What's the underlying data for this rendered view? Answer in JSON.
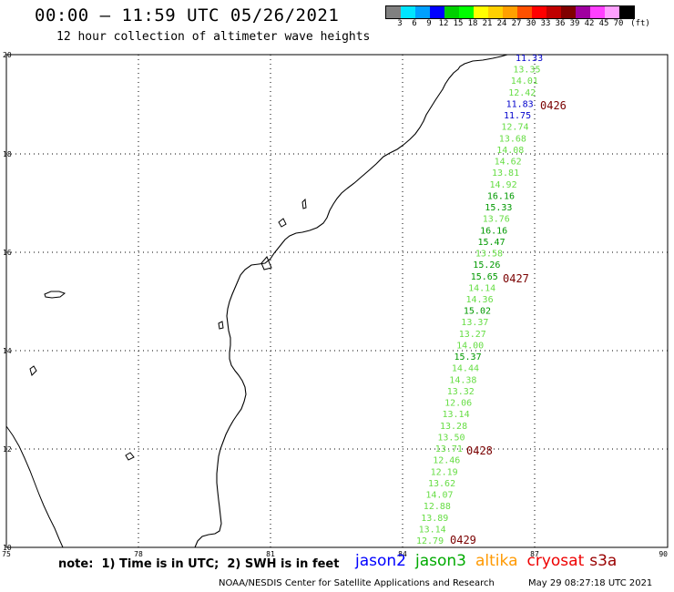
{
  "header": {
    "title": "00:00 – 11:59 UTC 05/26/2021",
    "subtitle": "12 hour collection of altimeter wave heights"
  },
  "legend": {
    "unit": "(ft)",
    "colors": [
      "#808080",
      "#00e5ff",
      "#00a0ff",
      "#0000ff",
      "#00d000",
      "#00ff00",
      "#ffff00",
      "#ffd000",
      "#ffa000",
      "#ff5000",
      "#ff0000",
      "#c00000",
      "#800000",
      "#a000a0",
      "#ff40ff",
      "#ffa0ff",
      "#000000"
    ],
    "ticks": [
      "3",
      "6",
      "9",
      "12",
      "15",
      "18",
      "21",
      "24",
      "27",
      "30",
      "33",
      "36",
      "39",
      "42",
      "45",
      "70"
    ]
  },
  "axes": {
    "x_ticks": [
      "75",
      "78",
      "81",
      "84",
      "87",
      "90"
    ],
    "y_ticks": [
      "20",
      "18",
      "16",
      "14",
      "12",
      "10"
    ]
  },
  "pass_labels": [
    "0426",
    "0427",
    "0428",
    "0429"
  ],
  "wave_heights": [
    {
      "v": "11.33",
      "c": "#0000cc"
    },
    {
      "v": "13.35",
      "c": "#66dd44"
    },
    {
      "v": "14.01",
      "c": "#66dd44"
    },
    {
      "v": "12.42",
      "c": "#66dd44"
    },
    {
      "v": "11.83",
      "c": "#0000cc"
    },
    {
      "v": "11.75",
      "c": "#0000cc"
    },
    {
      "v": "12.74",
      "c": "#66dd44"
    },
    {
      "v": "13.68",
      "c": "#66dd44"
    },
    {
      "v": "14.08",
      "c": "#66dd44"
    },
    {
      "v": "14.62",
      "c": "#66dd44"
    },
    {
      "v": "13.81",
      "c": "#66dd44"
    },
    {
      "v": "14.92",
      "c": "#66dd44"
    },
    {
      "v": "16.16",
      "c": "#009900"
    },
    {
      "v": "15.33",
      "c": "#009900"
    },
    {
      "v": "13.76",
      "c": "#66dd44"
    },
    {
      "v": "16.16",
      "c": "#009900"
    },
    {
      "v": "15.47",
      "c": "#009900"
    },
    {
      "v": "13.58",
      "c": "#66dd44"
    },
    {
      "v": "15.26",
      "c": "#009900"
    },
    {
      "v": "15.65",
      "c": "#009900"
    },
    {
      "v": "14.14",
      "c": "#66dd44"
    },
    {
      "v": "14.36",
      "c": "#66dd44"
    },
    {
      "v": "15.02",
      "c": "#009900"
    },
    {
      "v": "13.37",
      "c": "#66dd44"
    },
    {
      "v": "13.27",
      "c": "#66dd44"
    },
    {
      "v": "14.00",
      "c": "#66dd44"
    },
    {
      "v": "15.37",
      "c": "#009900"
    },
    {
      "v": "14.44",
      "c": "#66dd44"
    },
    {
      "v": "14.38",
      "c": "#66dd44"
    },
    {
      "v": "13.32",
      "c": "#66dd44"
    },
    {
      "v": "12.06",
      "c": "#66dd44"
    },
    {
      "v": "13.14",
      "c": "#66dd44"
    },
    {
      "v": "13.28",
      "c": "#66dd44"
    },
    {
      "v": "13.50",
      "c": "#66dd44"
    },
    {
      "v": "13.71",
      "c": "#66dd44"
    },
    {
      "v": "12.46",
      "c": "#66dd44"
    },
    {
      "v": "12.19",
      "c": "#66dd44"
    },
    {
      "v": "13.62",
      "c": "#66dd44"
    },
    {
      "v": "14.07",
      "c": "#66dd44"
    },
    {
      "v": "12.88",
      "c": "#66dd44"
    },
    {
      "v": "13.89",
      "c": "#66dd44"
    },
    {
      "v": "13.14",
      "c": "#66dd44"
    },
    {
      "v": "12.79",
      "c": "#66dd44"
    }
  ],
  "footer": {
    "note": "note:  1) Time is in UTC;  2) SWH is in feet",
    "missions": [
      {
        "name": "jason2",
        "color": "#0000ff"
      },
      {
        "name": "jason3",
        "color": "#00aa00"
      },
      {
        "name": "altika",
        "color": "#ff9900"
      },
      {
        "name": "cryosat",
        "color": "#ee0000"
      },
      {
        "name": "s3a",
        "color": "#990000"
      }
    ],
    "credit": "NOAA/NESDIS Center for Satellite Applications and Research",
    "timestamp": "May 29 08:27:18 UTC 2021"
  }
}
